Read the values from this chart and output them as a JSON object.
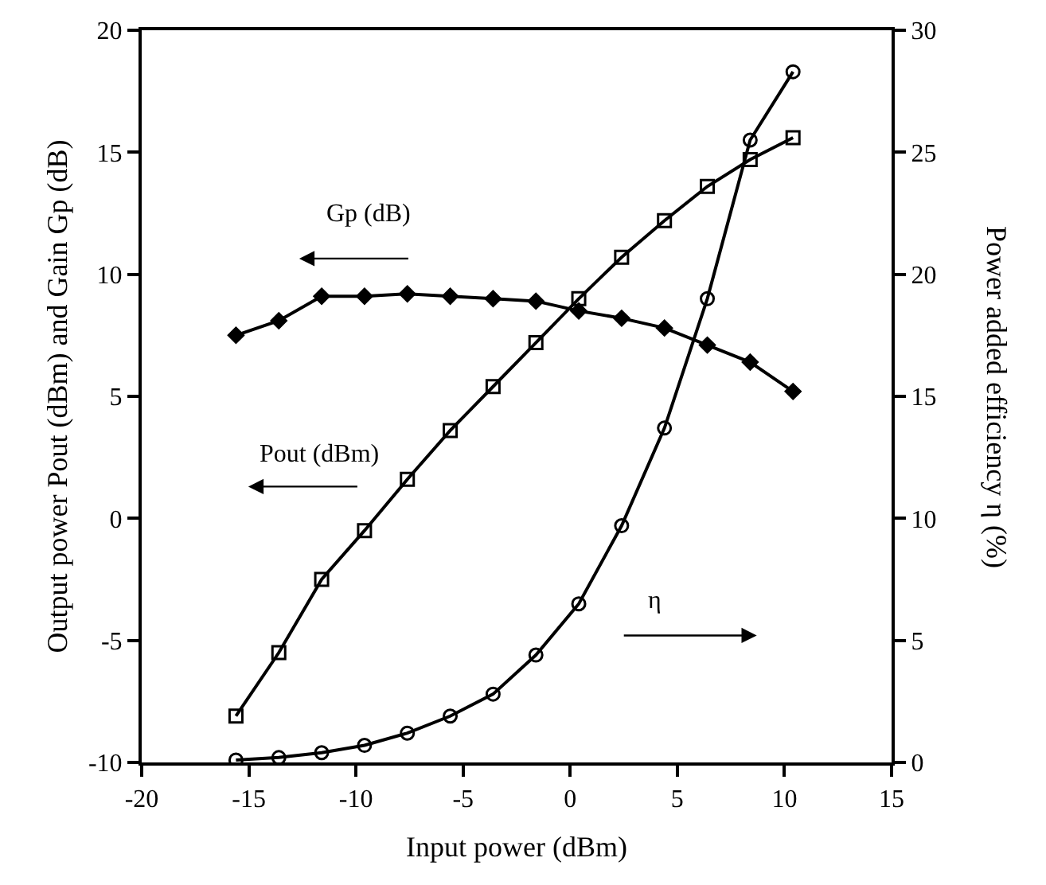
{
  "chart_data": {
    "type": "line",
    "xlabel": "Input power (dBm)",
    "ylabel": "Output power Pout (dBm) and Gain Gp (dB)",
    "y2label": "Power added efficiency η (%)",
    "x": [
      -15.6,
      -13.6,
      -11.6,
      -9.6,
      -7.6,
      -5.6,
      -3.6,
      -1.6,
      0.4,
      2.4,
      4.4,
      6.4,
      8.4,
      10.4
    ],
    "series": [
      {
        "name": "Gp (dB)",
        "color": "#000000",
        "marker": "diamond",
        "values": [
          7.5,
          8.1,
          9.1,
          9.1,
          9.2,
          9.1,
          9.0,
          8.9,
          8.5,
          8.2,
          7.8,
          7.1,
          6.4,
          5.2
        ]
      },
      {
        "name": "Pout (dBm)",
        "color": "#000000",
        "marker": "square",
        "values": [
          -8.1,
          -5.5,
          -2.5,
          -0.5,
          1.6,
          3.6,
          5.4,
          7.2,
          9.0,
          10.7,
          12.2,
          13.6,
          14.7,
          15.6
        ]
      },
      {
        "name": "η",
        "color": "#000000",
        "marker": "circle",
        "axis": "y2",
        "values": [
          0.1,
          0.2,
          0.4,
          0.7,
          1.2,
          1.9,
          2.8,
          4.4,
          6.5,
          9.7,
          13.7,
          19.0,
          25.5,
          28.3
        ]
      }
    ],
    "xlim": [
      -20,
      15
    ],
    "xticks": [
      -20,
      -15,
      -10,
      -5,
      0,
      5,
      10,
      15
    ],
    "ylim": [
      -10,
      20
    ],
    "yticks": [
      -10,
      -5,
      0,
      5,
      10,
      15,
      20
    ],
    "y2lim": [
      0,
      30
    ],
    "y2ticks": [
      0,
      5,
      10,
      15,
      20,
      25,
      30
    ],
    "grid": false,
    "legend": false,
    "line_style": "solid"
  }
}
